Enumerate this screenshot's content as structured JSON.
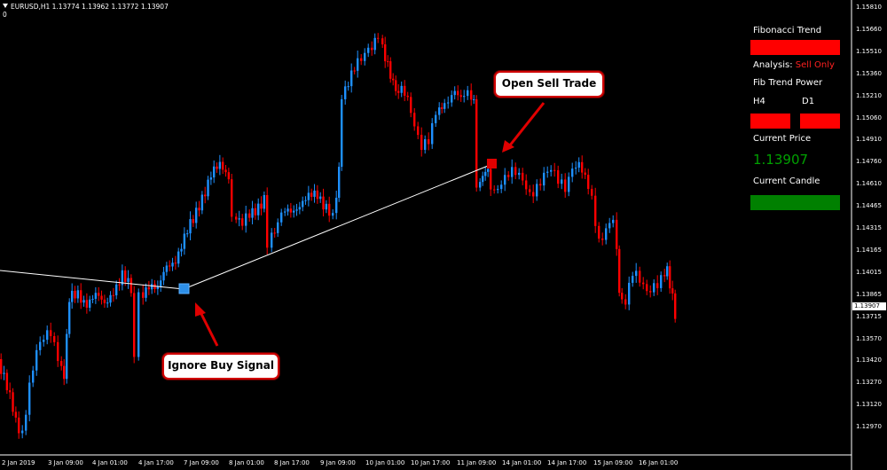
{
  "header": {
    "symbol_line": "EURUSD,H1  1.13774 1.13962 1.13772 1.13907",
    "sub": "0"
  },
  "panel": {
    "title": "Fibonacci Trend",
    "analysis_label": "Analysis:",
    "analysis_value": "Sell Only",
    "fib_power_label": "Fib Trend Power",
    "h4_label": "H4",
    "d1_label": "D1",
    "current_price_label": "Current Price",
    "current_price_value": "1.13907",
    "current_candle_label": "Current Candle",
    "colors": {
      "trend": "#ff0000",
      "h4": "#ff0000",
      "d1": "#ff0000",
      "candle": "#008000",
      "price": "#00a000",
      "analysis": "#ff0000"
    }
  },
  "callouts": {
    "sell": "Open Sell Trade",
    "buy": "Ignore Buy Signal"
  },
  "y_axis": [
    "1.15810",
    "1.15660",
    "1.15510",
    "1.15360",
    "1.15210",
    "1.15060",
    "1.14910",
    "1.14760",
    "1.14610",
    "1.14465",
    "1.14315",
    "1.14165",
    "1.14015",
    "1.13865",
    "1.13715",
    "1.13570",
    "1.13420",
    "1.13270",
    "1.13120",
    "1.12970"
  ],
  "x_axis": [
    "2 Jan 2019",
    "3 Jan 09:00",
    "4 Jan 01:00",
    "4 Jan 17:00",
    "7 Jan 09:00",
    "8 Jan 01:00",
    "8 Jan 17:00",
    "9 Jan 09:00",
    "10 Jan 01:00",
    "10 Jan 17:00",
    "11 Jan 09:00",
    "14 Jan 01:00",
    "14 Jan 17:00",
    "15 Jan 09:00",
    "16 Jan 01:00"
  ],
  "price_box": "1.13907",
  "colors": {
    "bull": "#1e90ff",
    "bear": "#ff0000",
    "line": "#ffffff"
  }
}
